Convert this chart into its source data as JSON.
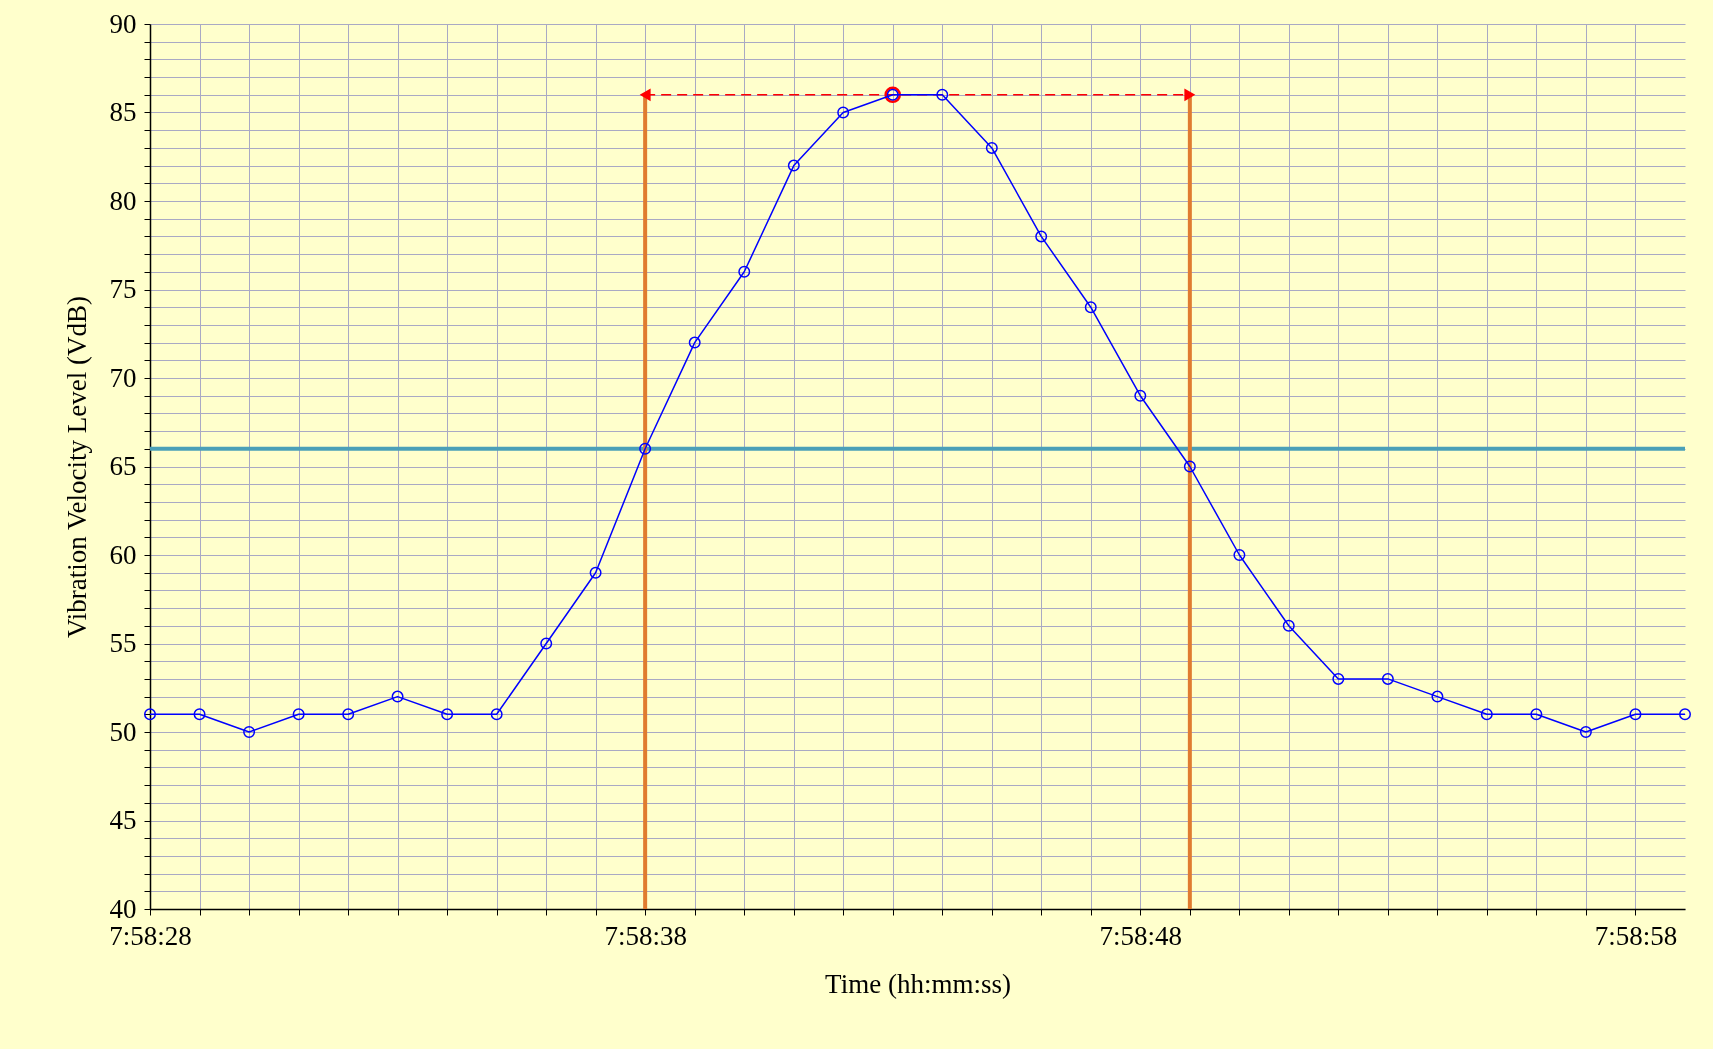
{
  "chart_data": {
    "type": "line",
    "xlabel": "Time (hh:mm:ss)",
    "ylabel": "Vibration Velocity Level (VdB)",
    "x": [
      7.974444,
      7.974722,
      7.975,
      7.975278,
      7.975556,
      7.975833,
      7.976111,
      7.976389,
      7.976667,
      7.976944,
      7.977222,
      7.9775,
      7.977778,
      7.978056,
      7.978333,
      7.978611,
      7.978889,
      7.979167,
      7.979444,
      7.979722,
      7.98,
      7.980278,
      7.980556,
      7.980833,
      7.981111,
      7.981389,
      7.981667,
      7.981944,
      7.982222,
      7.9825,
      7.982778,
      7.983056
    ],
    "series": [
      {
        "color": "#0000ff",
        "values": [
          51,
          51,
          50,
          51,
          51,
          52,
          51,
          51,
          55,
          59,
          66,
          72,
          76,
          82,
          85,
          86,
          86,
          83,
          78,
          74,
          69,
          65,
          60,
          56,
          53,
          53,
          52,
          51,
          51,
          50,
          51,
          51
        ]
      },
      {
        "type": "scatter",
        "color": "#ff0000",
        "x": [
          7.978611
        ],
        "values": [
          86
        ]
      },
      {
        "color": "#e07b30",
        "marker": "none",
        "x": [
          7.977222,
          7.977222
        ],
        "values": [
          40,
          86
        ]
      },
      {
        "color": "#e07b30",
        "marker": "none",
        "x": [
          7.980278,
          7.980278
        ],
        "values": [
          40,
          86
        ]
      },
      {
        "color": "#ff0000",
        "marker": "triangle",
        "line_style": "dashed",
        "x": [
          7.977222,
          7.980278
        ],
        "values": [
          86,
          86
        ]
      }
    ],
    "ref_lines": [
      {
        "axis": "y",
        "value": 66,
        "color": "#4aa0b8"
      }
    ],
    "xlim": [
      7.974444,
      7.983056
    ],
    "xticks": [
      {
        "value": 7.974444,
        "label": "7:58:28"
      },
      {
        "value": 7.974722,
        "label": null
      },
      {
        "value": 7.975,
        "label": null
      },
      {
        "value": 7.975278,
        "label": null
      },
      {
        "value": 7.975556,
        "label": null
      },
      {
        "value": 7.975833,
        "label": null
      },
      {
        "value": 7.976111,
        "label": null
      },
      {
        "value": 7.976389,
        "label": null
      },
      {
        "value": 7.976667,
        "label": null
      },
      {
        "value": 7.976944,
        "label": null
      },
      {
        "value": 7.977222,
        "label": "7:58:38"
      },
      {
        "value": 7.9775,
        "label": null
      },
      {
        "value": 7.977778,
        "label": null
      },
      {
        "value": 7.978056,
        "label": null
      },
      {
        "value": 7.978333,
        "label": null
      },
      {
        "value": 7.978611,
        "label": null
      },
      {
        "value": 7.978889,
        "label": null
      },
      {
        "value": 7.979167,
        "label": null
      },
      {
        "value": 7.979444,
        "label": null
      },
      {
        "value": 7.979722,
        "label": null
      },
      {
        "value": 7.98,
        "label": "7:58:48"
      },
      {
        "value": 7.980278,
        "label": null
      },
      {
        "value": 7.980556,
        "label": null
      },
      {
        "value": 7.980833,
        "label": null
      },
      {
        "value": 7.981111,
        "label": null
      },
      {
        "value": 7.981389,
        "label": null
      },
      {
        "value": 7.981667,
        "label": null
      },
      {
        "value": 7.981944,
        "label": null
      },
      {
        "value": 7.982222,
        "label": null
      },
      {
        "value": 7.9825,
        "label": null
      },
      {
        "value": 7.982778,
        "label": "7:58:58"
      }
    ],
    "ylim": [
      40,
      90
    ],
    "yticks": [
      40,
      {
        "value": 41,
        "label": null
      },
      {
        "value": 42,
        "label": null
      },
      {
        "value": 43,
        "label": null
      },
      {
        "value": 44,
        "label": null
      },
      45,
      {
        "value": 46,
        "label": null
      },
      {
        "value": 47,
        "label": null
      },
      {
        "value": 48,
        "label": null
      },
      {
        "value": 49,
        "label": null
      },
      50,
      {
        "value": 51,
        "label": null
      },
      {
        "value": 52,
        "label": null
      },
      {
        "value": 53,
        "label": null
      },
      {
        "value": 54,
        "label": null
      },
      55,
      {
        "value": 56,
        "label": null
      },
      {
        "value": 57,
        "label": null
      },
      {
        "value": 58,
        "label": null
      },
      {
        "value": 59,
        "label": null
      },
      60,
      {
        "value": 61,
        "label": null
      },
      {
        "value": 62,
        "label": null
      },
      {
        "value": 63,
        "label": null
      },
      {
        "value": 64,
        "label": null
      },
      65,
      {
        "value": 66,
        "label": null
      },
      {
        "value": 67,
        "label": null
      },
      {
        "value": 68,
        "label": null
      },
      {
        "value": 69,
        "label": null
      },
      70,
      {
        "value": 71,
        "label": null
      },
      {
        "value": 72,
        "label": null
      },
      {
        "value": 73,
        "label": null
      },
      {
        "value": 74,
        "label": null
      },
      75,
      {
        "value": 76,
        "label": null
      },
      {
        "value": 77,
        "label": null
      },
      {
        "value": 78,
        "label": null
      },
      {
        "value": 79,
        "label": null
      },
      80,
      {
        "value": 81,
        "label": null
      },
      {
        "value": 82,
        "label": null
      },
      {
        "value": 83,
        "label": null
      },
      {
        "value": 84,
        "label": null
      },
      85,
      {
        "value": 86,
        "label": null
      },
      {
        "value": 87,
        "label": null
      },
      {
        "value": 88,
        "label": null
      },
      {
        "value": 89,
        "label": null
      },
      90
    ],
    "grid": true,
    "marker": "circle",
    "line_style": "solid"
  }
}
